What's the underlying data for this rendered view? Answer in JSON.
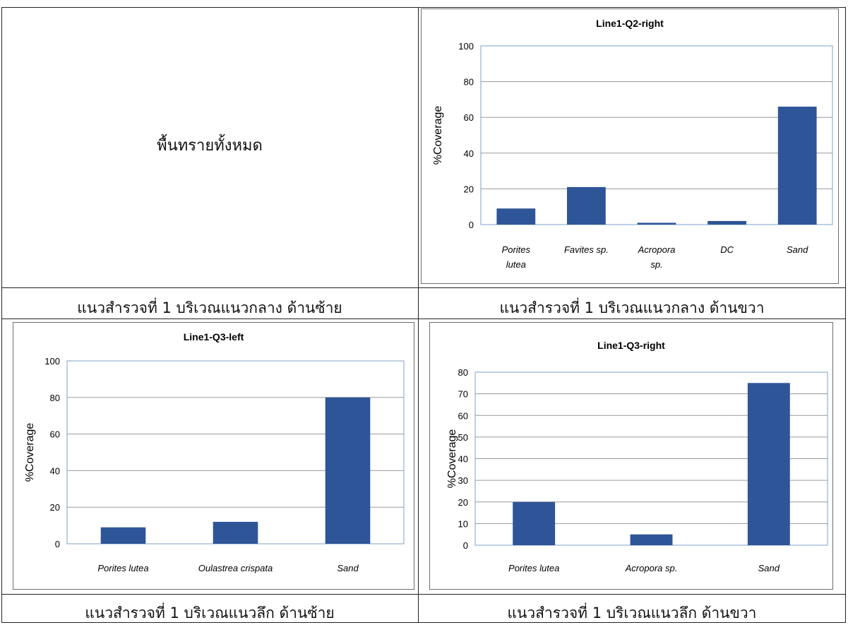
{
  "cells": {
    "top_left_text": "พื้นทรายทั้งหมด",
    "captions": [
      "แนวสำรวจที่ 1 บริเวณแนวกลาง ด้านซ้าย",
      "แนวสำรวจที่ 1 บริเวณแนวกลาง ด้านขวา",
      "แนวสำรวจที่ 1 บริเวณแนวลึก ด้านซ้าย",
      "แนวสำรวจที่ 1 บริเวณแนวลึก ด้านขวา"
    ]
  },
  "colors": {
    "bar": "#2e5597",
    "grid": "#9a9a9a",
    "plot_border": "#7ea0c9"
  },
  "chart_data": [
    {
      "type": "bar",
      "title": "Line1-Q2-right",
      "ylabel": "%Coverage",
      "xlabel": "",
      "categories": [
        [
          "Porites",
          "lutea"
        ],
        [
          "Favites sp."
        ],
        [
          "Acropora",
          "sp."
        ],
        [
          "DC"
        ],
        [
          "Sand"
        ]
      ],
      "values": [
        9,
        21,
        1,
        2,
        66
      ],
      "ylim": [
        0,
        100
      ],
      "yticks": [
        0,
        20,
        40,
        60,
        80,
        100
      ],
      "grid": true
    },
    {
      "type": "bar",
      "title": "Line1-Q3-left",
      "ylabel": "%Coverage",
      "xlabel": "",
      "categories": [
        [
          "Porites lutea"
        ],
        [
          "Oulastrea crispata"
        ],
        [
          "Sand"
        ]
      ],
      "values": [
        9,
        12,
        80
      ],
      "ylim": [
        0,
        100
      ],
      "yticks": [
        0,
        20,
        40,
        60,
        80,
        100
      ],
      "grid": true
    },
    {
      "type": "bar",
      "title": "Line1-Q3-right",
      "ylabel": "%Coverage",
      "xlabel": "",
      "categories": [
        [
          "Porites lutea"
        ],
        [
          "Acropora sp."
        ],
        [
          "Sand"
        ]
      ],
      "values": [
        20,
        5,
        75
      ],
      "ylim": [
        0,
        80
      ],
      "yticks": [
        0,
        10,
        20,
        30,
        40,
        50,
        60,
        70,
        80
      ],
      "grid": true
    }
  ]
}
